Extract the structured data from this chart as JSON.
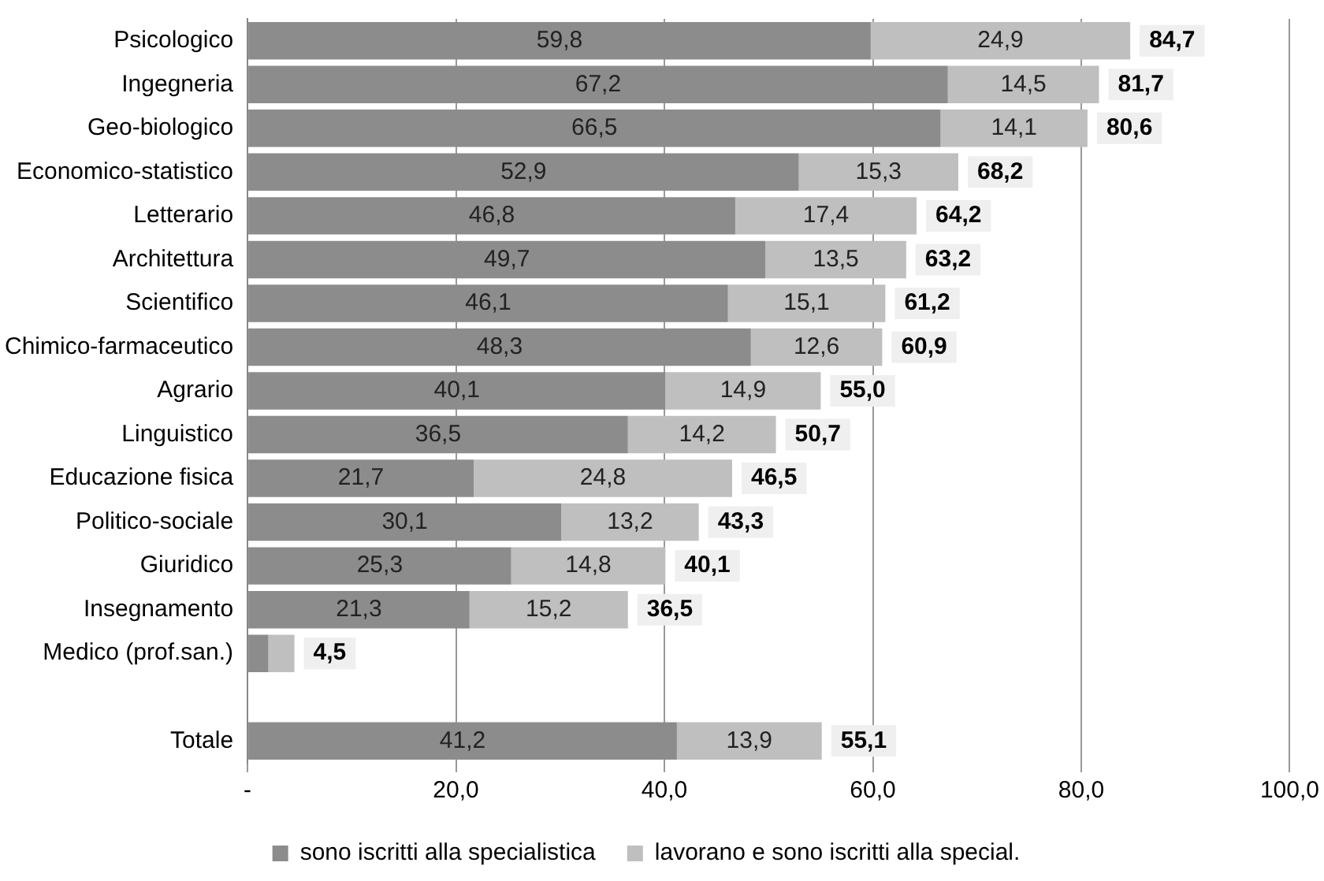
{
  "chart_data": {
    "type": "bar",
    "orientation": "horizontal",
    "stacked": true,
    "categories": [
      "Psicologico",
      "Ingegneria",
      "Geo-biologico",
      "Economico-statistico",
      "Letterario",
      "Architettura",
      "Scientifico",
      "Chimico-farmaceutico",
      "Agrario",
      "Linguistico",
      "Educazione fisica",
      "Politico-sociale",
      "Giuridico",
      "Insegnamento",
      "Medico (prof.san.)",
      null,
      "Totale"
    ],
    "series": [
      {
        "name": "sono iscritti alla specialistica",
        "color": "#8c8c8c",
        "values": [
          59.8,
          67.2,
          66.5,
          52.9,
          46.8,
          49.7,
          46.1,
          48.3,
          40.1,
          36.5,
          21.7,
          30.1,
          25.3,
          21.3,
          2.0,
          null,
          41.2
        ],
        "value_labels": [
          "59,8",
          "67,2",
          "66,5",
          "52,9",
          "46,8",
          "49,7",
          "46,1",
          "48,3",
          "40,1",
          "36,5",
          "21,7",
          "30,1",
          "25,3",
          "21,3",
          null,
          null,
          "41,2"
        ]
      },
      {
        "name": "lavorano e sono iscritti alla special.",
        "color": "#bfbfbf",
        "values": [
          24.9,
          14.5,
          14.1,
          15.3,
          17.4,
          13.5,
          15.1,
          12.6,
          14.9,
          14.2,
          24.8,
          13.2,
          14.8,
          15.2,
          2.5,
          null,
          13.9
        ],
        "value_labels": [
          "24,9",
          "14,5",
          "14,1",
          "15,3",
          "17,4",
          "13,5",
          "15,1",
          "12,6",
          "14,9",
          "14,2",
          "24,8",
          "13,2",
          "14,8",
          "15,2",
          null,
          null,
          "13,9"
        ]
      }
    ],
    "totals": [
      "84,7",
      "81,7",
      "80,6",
      "68,2",
      "64,2",
      "63,2",
      "61,2",
      "60,9",
      "55,0",
      "50,7",
      "46,5",
      "43,3",
      "40,1",
      "36,5",
      "4,5",
      null,
      "55,1"
    ],
    "xlim": [
      0,
      100
    ],
    "xticks": [
      {
        "value": 0,
        "label": "-"
      },
      {
        "value": 20,
        "label": "20,0"
      },
      {
        "value": 40,
        "label": "40,0"
      },
      {
        "value": 60,
        "label": "60,0"
      },
      {
        "value": 80,
        "label": "80,0"
      },
      {
        "value": 100,
        "label": "100,0"
      }
    ],
    "grid": "x",
    "legend": "bottom"
  }
}
